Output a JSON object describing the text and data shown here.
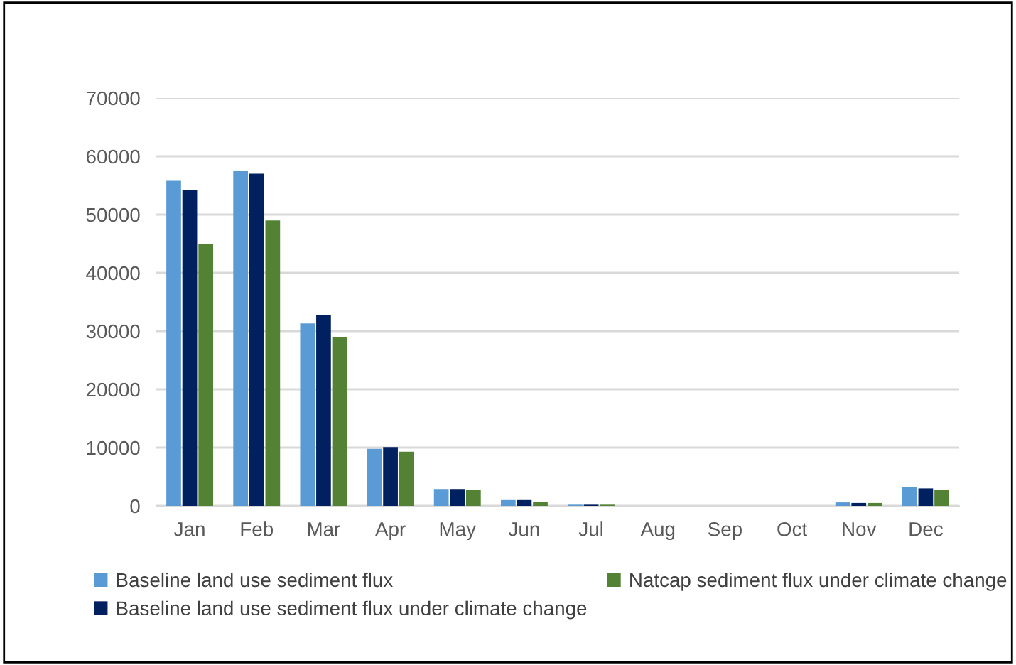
{
  "chart_data": {
    "type": "bar",
    "categories": [
      "Jan",
      "Feb",
      "Mar",
      "Apr",
      "May",
      "Jun",
      "Jul",
      "Aug",
      "Sep",
      "Oct",
      "Nov",
      "Dec"
    ],
    "series": [
      {
        "name": "Baseline land use sediment flux",
        "color": "#5b9bd5",
        "values": [
          55800,
          57500,
          31300,
          9800,
          2900,
          1000,
          200,
          0,
          0,
          0,
          600,
          3200
        ]
      },
      {
        "name": "Baseline land use sediment flux under climate change",
        "color": "#002060",
        "values": [
          54200,
          57000,
          32700,
          10100,
          2900,
          1000,
          200,
          0,
          0,
          0,
          500,
          3000
        ]
      },
      {
        "name": "Natcap sediment flux under climate change",
        "color": "#548235",
        "values": [
          45000,
          49000,
          29000,
          9300,
          2700,
          700,
          200,
          0,
          0,
          0,
          500,
          2700
        ]
      }
    ],
    "ylim": [
      0,
      70000
    ],
    "yticks": [
      0,
      10000,
      20000,
      30000,
      40000,
      50000,
      60000,
      70000
    ],
    "grid": "y",
    "legend": "bottom"
  }
}
